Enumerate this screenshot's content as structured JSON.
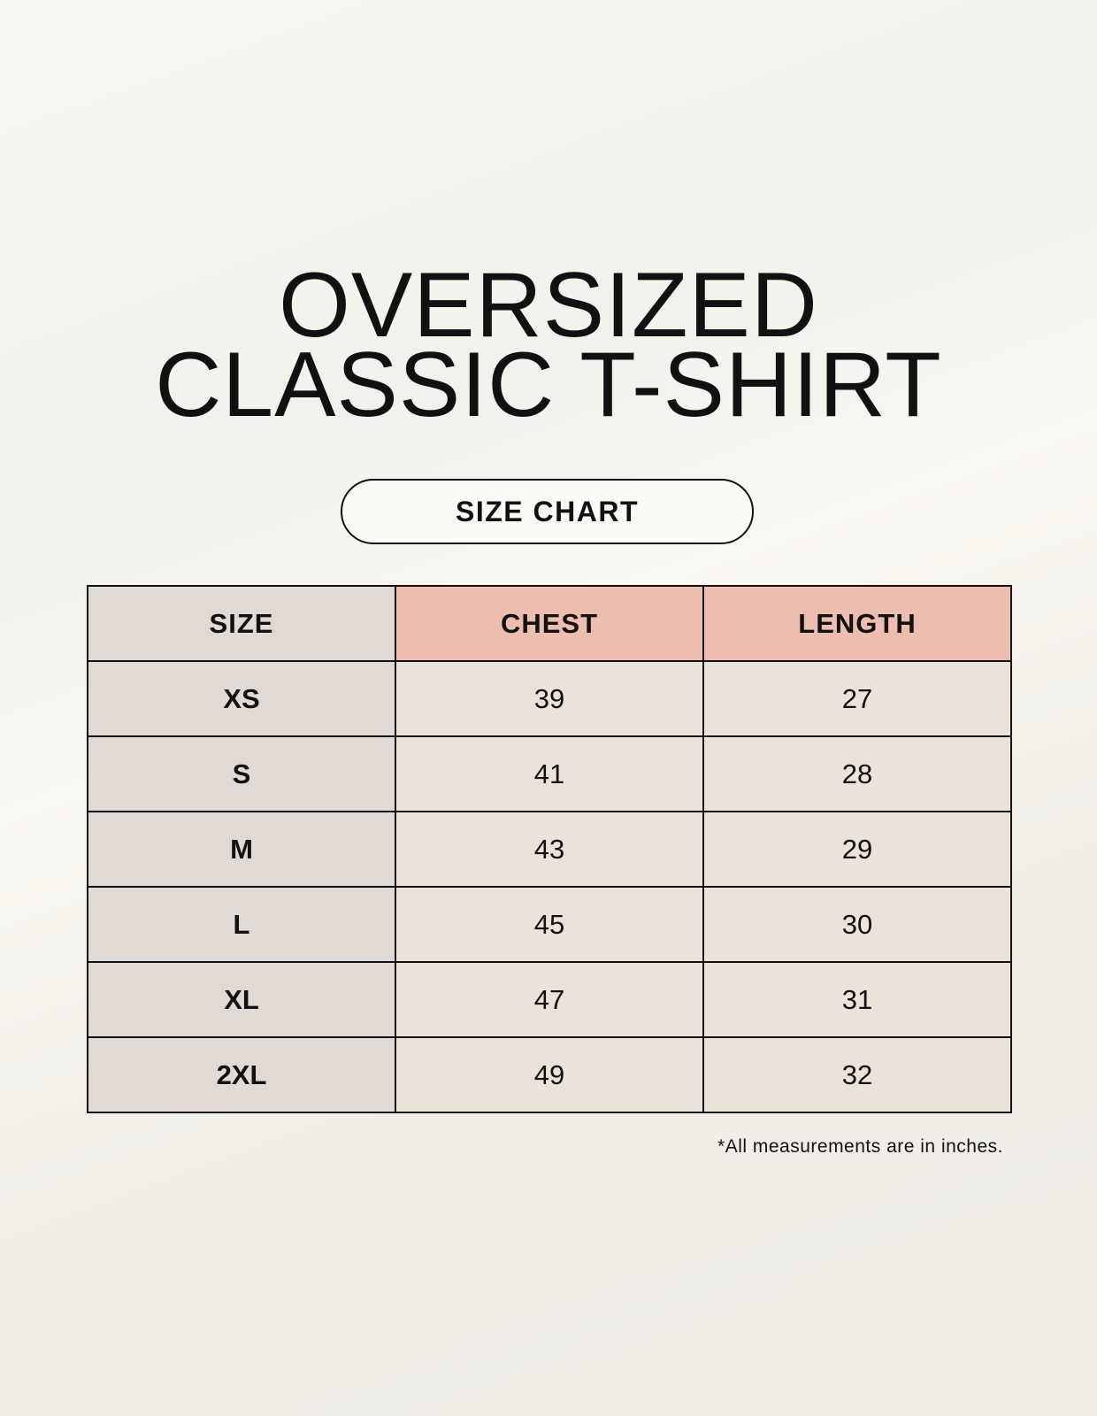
{
  "title": {
    "line1": "OVERSIZED",
    "line2": "CLASSIC T-SHIRT"
  },
  "subtitle": "SIZE CHART",
  "table": {
    "headers": [
      "SIZE",
      "CHEST",
      "LENGTH"
    ],
    "rows": [
      [
        "XS",
        "39",
        "27"
      ],
      [
        "S",
        "41",
        "28"
      ],
      [
        "M",
        "43",
        "29"
      ],
      [
        "L",
        "45",
        "30"
      ],
      [
        "XL",
        "47",
        "31"
      ],
      [
        "2XL",
        "49",
        "32"
      ]
    ]
  },
  "footnote": "*All measurements are in inches.",
  "colors": {
    "size_column": "#e1d9d4",
    "header_accent": "#edbdb0",
    "value_cells": "#ebe3da",
    "background": "#f8f6f0"
  }
}
